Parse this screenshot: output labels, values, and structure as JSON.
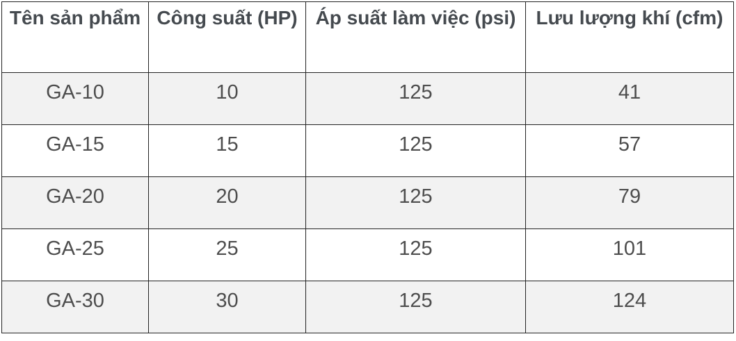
{
  "table": {
    "headers": [
      "Tên sản phẩm",
      "Công suất (HP)",
      "Áp suất làm việc (psi)",
      "Lưu lượng khí (cfm)"
    ],
    "rows": [
      [
        "GA-10",
        "10",
        "125",
        "41"
      ],
      [
        "GA-15",
        "15",
        "125",
        "57"
      ],
      [
        "GA-20",
        "20",
        "125",
        "79"
      ],
      [
        "GA-25",
        "25",
        "125",
        "101"
      ],
      [
        "GA-30",
        "30",
        "125",
        "124"
      ]
    ]
  },
  "colors": {
    "text": "#4d4d4d",
    "stripe": "#f2f2f2",
    "border": "#222222"
  }
}
